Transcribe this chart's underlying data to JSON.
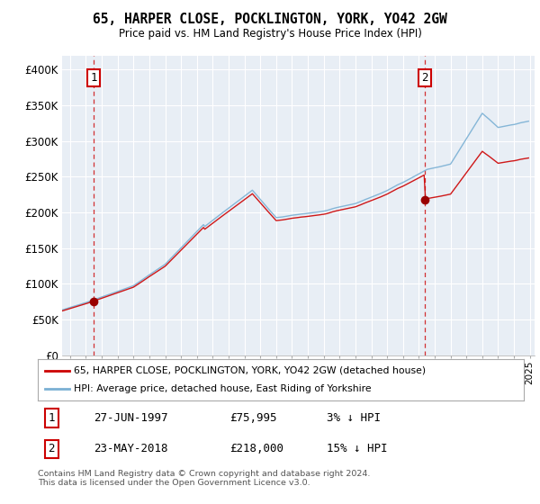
{
  "title": "65, HARPER CLOSE, POCKLINGTON, YORK, YO42 2GW",
  "subtitle": "Price paid vs. HM Land Registry's House Price Index (HPI)",
  "legend_line1": "65, HARPER CLOSE, POCKLINGTON, YORK, YO42 2GW (detached house)",
  "legend_line2": "HPI: Average price, detached house, East Riding of Yorkshire",
  "copyright": "Contains HM Land Registry data © Crown copyright and database right 2024.\nThis data is licensed under the Open Government Licence v3.0.",
  "hpi_color": "#7ab0d4",
  "price_color": "#cc0000",
  "dot_color": "#990000",
  "vline_color": "#cc0000",
  "background_color": "#e8eef5",
  "ylim_min": 0,
  "ylim_max": 420000,
  "xlim_min": 1995.5,
  "xlim_max": 2025.3,
  "sale1_year": 1997.49,
  "sale1_price": 75995,
  "sale2_year": 2018.38,
  "sale2_price": 218000,
  "ann1_date": "27-JUN-1997",
  "ann1_price": "£75,995",
  "ann1_pct": "3% ↓ HPI",
  "ann2_date": "23-MAY-2018",
  "ann2_price": "£218,000",
  "ann2_pct": "15% ↓ HPI"
}
